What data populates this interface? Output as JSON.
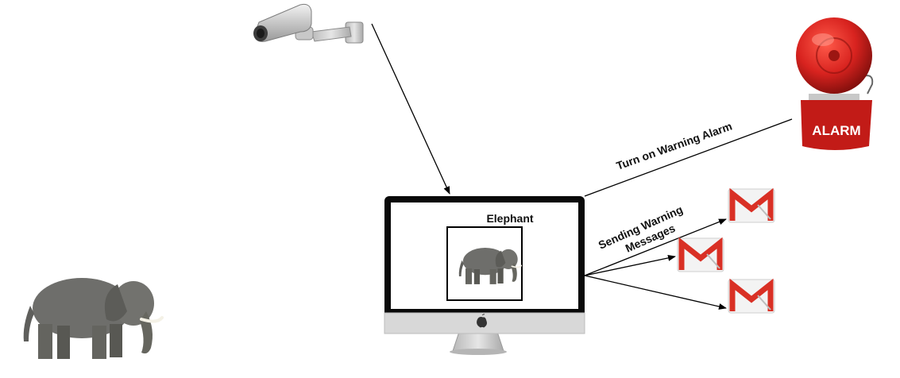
{
  "detection": {
    "label": "Elephant"
  },
  "alarm": {
    "label": "ALARM"
  },
  "edges": {
    "alarm_action": "Turn on Warning Alarm",
    "message_action_line1": "Sending Warning",
    "message_action_line2": "Messages"
  },
  "icons": {
    "camera": "cctv-camera-icon",
    "monitor": "desktop-monitor-icon",
    "alarm": "alarm-bell-icon",
    "mail": "gmail-icon",
    "elephant": "elephant-icon",
    "apple": "apple-logo-icon"
  },
  "colors": {
    "alarm_red": "#d8231f",
    "gmail_red": "#d93025",
    "arrow": "#000000"
  }
}
